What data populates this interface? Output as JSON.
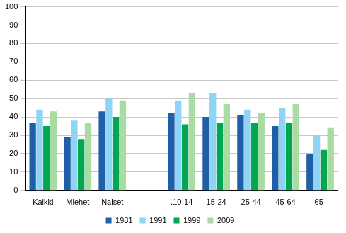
{
  "chart_data": {
    "type": "bar",
    "categories": [
      "Kaikki",
      "Miehet",
      "Naiset",
      null,
      ".10-14",
      "15-24",
      "25-44",
      "45-64",
      "65-"
    ],
    "series": [
      {
        "name": "1981",
        "color": "#1f5fa8",
        "values": [
          37,
          29,
          43,
          null,
          42,
          40,
          41,
          35,
          20
        ]
      },
      {
        "name": "1991",
        "color": "#8fd3f5",
        "values": [
          44,
          38,
          50,
          null,
          49,
          53,
          44,
          45,
          30
        ]
      },
      {
        "name": "1999",
        "color": "#00a650",
        "values": [
          35,
          28,
          40,
          null,
          36,
          37,
          37,
          37,
          22
        ]
      },
      {
        "name": "2009",
        "color": "#a9dca3",
        "values": [
          43,
          37,
          49,
          null,
          53,
          47,
          42,
          47,
          34
        ]
      }
    ],
    "ylim": [
      0,
      100
    ],
    "yticks": [
      0,
      10,
      20,
      30,
      40,
      50,
      60,
      70,
      80,
      90,
      100
    ],
    "grid": true,
    "legend": "bottom"
  }
}
